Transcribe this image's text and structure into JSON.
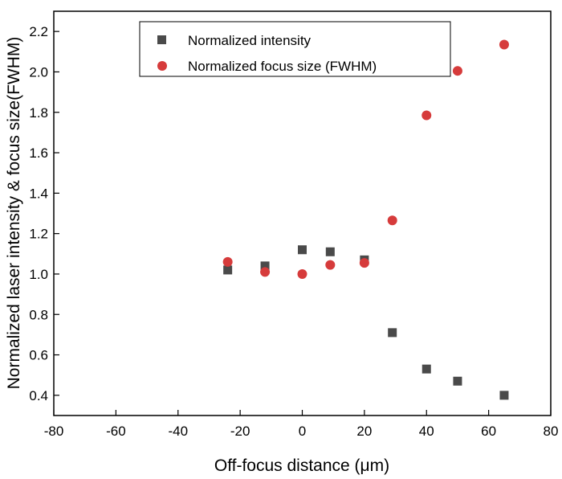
{
  "chart_data": {
    "type": "scatter",
    "title": "",
    "xlabel": "Off-focus distance (μm)",
    "ylabel": "Normalized laser intensity & focus size(FWHM)",
    "xlim": [
      -80,
      80
    ],
    "ylim": [
      0.3,
      2.3
    ],
    "xticks": [
      "-80",
      "-60",
      "-40",
      "-20",
      "0",
      "20",
      "40",
      "60",
      "80"
    ],
    "yticks": [
      "0.4",
      "0.6",
      "0.8",
      "1.0",
      "1.2",
      "1.4",
      "1.6",
      "1.8",
      "2.0",
      "2.2"
    ],
    "grid": false,
    "legend_position": "top-center",
    "series": [
      {
        "name": "Normalized intensity",
        "marker": "square",
        "color": "#4a4a4a",
        "x": [
          -24,
          -12,
          0,
          9,
          20,
          29,
          40,
          50,
          65
        ],
        "y": [
          1.02,
          1.04,
          1.12,
          1.11,
          1.07,
          0.71,
          0.53,
          0.47,
          0.4
        ]
      },
      {
        "name": "Normalized focus size (FWHM)",
        "marker": "circle",
        "color": "#d63b3b",
        "x": [
          -24,
          -12,
          0,
          9,
          20,
          29,
          40,
          50,
          65
        ],
        "y": [
          1.06,
          1.01,
          1.0,
          1.045,
          1.055,
          1.265,
          1.785,
          2.005,
          2.135
        ]
      }
    ]
  }
}
